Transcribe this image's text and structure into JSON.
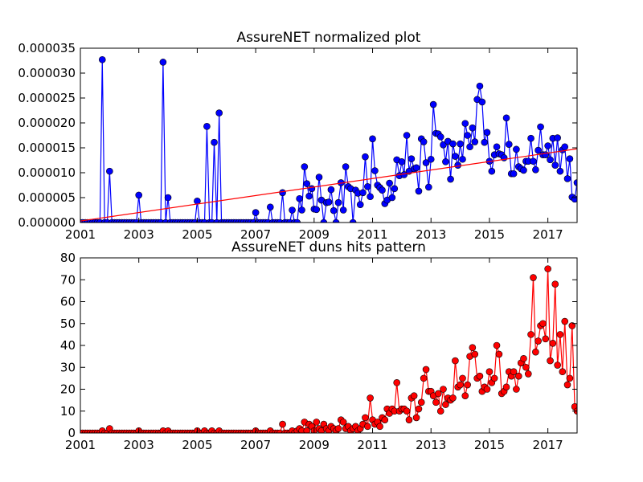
{
  "chart_data": [
    {
      "type": "line",
      "title": "AssureNET normalized plot",
      "x": [
        2001,
        2001.08,
        2001.17,
        2001.25,
        2001.33,
        2001.42,
        2001.5,
        2001.58,
        2001.67,
        2001.75,
        2001.83,
        2001.92,
        2002,
        2002.08,
        2002.17,
        2002.25,
        2002.33,
        2002.42,
        2002.5,
        2002.58,
        2002.67,
        2002.75,
        2002.83,
        2002.92,
        2003,
        2003.08,
        2003.17,
        2003.25,
        2003.33,
        2003.42,
        2003.5,
        2003.58,
        2003.67,
        2003.75,
        2003.83,
        2003.92,
        2004,
        2004.08,
        2004.17,
        2004.25,
        2004.33,
        2004.42,
        2004.5,
        2004.58,
        2004.67,
        2004.75,
        2004.83,
        2004.92,
        2005,
        2005.08,
        2005.17,
        2005.25,
        2005.33,
        2005.42,
        2005.5,
        2005.58,
        2005.67,
        2005.75,
        2005.83,
        2005.92,
        2006,
        2006.08,
        2006.17,
        2006.25,
        2006.33,
        2006.42,
        2006.5,
        2006.58,
        2006.67,
        2006.75,
        2006.83,
        2006.92,
        2007,
        2007.08,
        2007.17,
        2007.25,
        2007.33,
        2007.42,
        2007.5,
        2007.58,
        2007.67,
        2007.75,
        2007.83,
        2007.92,
        2008,
        2008.08,
        2008.17,
        2008.25,
        2008.33,
        2008.42,
        2008.5,
        2008.58,
        2008.67,
        2008.75,
        2008.83,
        2008.92,
        2009,
        2009.08,
        2009.17,
        2009.25,
        2009.33,
        2009.42,
        2009.5,
        2009.58,
        2009.67,
        2009.75,
        2009.83,
        2009.92,
        2010,
        2010.08,
        2010.17,
        2010.25,
        2010.33,
        2010.42,
        2010.5,
        2010.58,
        2010.67,
        2010.75,
        2010.83,
        2010.92,
        2011,
        2011.08,
        2011.17,
        2011.25,
        2011.33,
        2011.42,
        2011.5,
        2011.58,
        2011.67,
        2011.75,
        2011.83,
        2011.92,
        2012,
        2012.08,
        2012.17,
        2012.25,
        2012.33,
        2012.42,
        2012.5,
        2012.58,
        2012.67,
        2012.75,
        2012.83,
        2012.92,
        2013,
        2013.08,
        2013.17,
        2013.25,
        2013.33,
        2013.42,
        2013.5,
        2013.58,
        2013.67,
        2013.75,
        2013.83,
        2013.92,
        2014,
        2014.08,
        2014.17,
        2014.25,
        2014.33,
        2014.42,
        2014.5,
        2014.58,
        2014.67,
        2014.75,
        2014.83,
        2014.92,
        2015,
        2015.08,
        2015.17,
        2015.25,
        2015.33,
        2015.42,
        2015.5,
        2015.58,
        2015.67,
        2015.75,
        2015.83,
        2015.92,
        2016,
        2016.08,
        2016.17,
        2016.25,
        2016.33,
        2016.42,
        2016.5,
        2016.58,
        2016.67,
        2016.75,
        2016.83,
        2016.92,
        2017,
        2017.08,
        2017.17,
        2017.25,
        2017.33,
        2017.42,
        2017.5,
        2017.58,
        2017.67,
        2017.75,
        2017.83,
        2017.92,
        2018
      ],
      "xlim": [
        2001,
        2018
      ],
      "xticks": [
        2001,
        2003,
        2005,
        2007,
        2009,
        2011,
        2013,
        2015,
        2017
      ],
      "ylim": [
        0,
        3.5e-05
      ],
      "yticks": [
        {
          "value": 0,
          "label": "0.000000"
        },
        {
          "value": 5e-06,
          "label": "0.000005"
        },
        {
          "value": 1e-05,
          "label": "0.000010"
        },
        {
          "value": 1.5e-05,
          "label": "0.000015"
        },
        {
          "value": 2e-05,
          "label": "0.000020"
        },
        {
          "value": 2.5e-05,
          "label": "0.000025"
        },
        {
          "value": 3e-05,
          "label": "0.000030"
        },
        {
          "value": 3.5e-05,
          "label": "0.000035"
        }
      ],
      "series": [
        {
          "color": "#0000ff",
          "values": [
            0,
            0,
            0,
            0,
            0,
            0,
            0,
            0,
            0,
            3.27e-05,
            0,
            0,
            1.03e-05,
            0,
            0,
            0,
            0,
            0,
            0,
            0,
            0,
            0,
            0,
            0,
            5.5e-06,
            0,
            0,
            0,
            0,
            0,
            0,
            0,
            0,
            0,
            3.22e-05,
            0,
            5e-06,
            0,
            0,
            0,
            0,
            0,
            0,
            0,
            0,
            0,
            0,
            0,
            4.3e-06,
            0,
            0,
            0,
            1.93e-05,
            0,
            0,
            1.61e-05,
            0,
            2.2e-05,
            0,
            0,
            0,
            0,
            0,
            0,
            0,
            0,
            0,
            0,
            0,
            0,
            0,
            0,
            2e-06,
            0,
            0,
            0,
            0,
            0,
            3.1e-06,
            0,
            0,
            0,
            0,
            6e-06,
            0,
            0,
            0,
            2.5e-06,
            0,
            0,
            4.8e-06,
            2.5e-06,
            1.12e-05,
            7.8e-06,
            5.3e-06,
            6.8e-06,
            2.7e-06,
            2.6e-06,
            9.1e-06,
            4.5e-06,
            0,
            4e-06,
            4.1e-06,
            6.6e-06,
            2.4e-06,
            0,
            4e-06,
            8e-06,
            2.5e-06,
            1.12e-05,
            7.2e-06,
            6.8e-06,
            0,
            6.5e-06,
            5.9e-06,
            3.6e-06,
            6e-06,
            1.32e-05,
            7.2e-06,
            5.2e-06,
            1.68e-05,
            1.04e-05,
            7.5e-06,
            7e-06,
            6.5e-06,
            3.8e-06,
            4.5e-06,
            7.9e-06,
            5e-06,
            6.8e-06,
            1.26e-05,
            9.4e-06,
            1.22e-05,
            9.6e-06,
            1.75e-05,
            1.03e-05,
            1.28e-05,
            1.08e-05,
            1.1e-05,
            6.3e-06,
            1.68e-05,
            1.62e-05,
            1.2e-05,
            7.1e-06,
            1.27e-05,
            2.37e-05,
            1.79e-05,
            1.78e-05,
            1.72e-05,
            1.56e-05,
            1.22e-05,
            1.63e-05,
            8.7e-06,
            1.58e-05,
            1.33e-05,
            1.15e-05,
            1.58e-05,
            1.27e-05,
            1.99e-05,
            1.75e-05,
            1.52e-05,
            1.9e-05,
            1.62e-05,
            2.47e-05,
            2.74e-05,
            2.42e-05,
            1.61e-05,
            1.81e-05,
            1.23e-05,
            1.03e-05,
            1.36e-05,
            1.52e-05,
            1.38e-05,
            1.36e-05,
            1.3e-05,
            2.1e-05,
            1.57e-05,
            9.8e-06,
            9.8e-06,
            1.47e-05,
            1.12e-05,
            1.08e-05,
            1.05e-05,
            1.23e-05,
            1.23e-05,
            1.69e-05,
            1.23e-05,
            1.06e-05,
            1.45e-05,
            1.92e-05,
            1.36e-05,
            1.36e-05,
            1.54e-05,
            1.26e-05,
            1.69e-05,
            1.15e-05,
            1.7e-05,
            1.03e-05,
            1.46e-05,
            1.52e-05,
            8.8e-06,
            1.28e-05,
            5.1e-06,
            4.7e-06,
            8e-06
          ]
        }
      ],
      "trend": {
        "color": "#ff0000",
        "x": [
          2001,
          2018
        ],
        "values": [
          3e-07,
          1.48e-05
        ]
      }
    },
    {
      "type": "line",
      "title": "AssureNET duns hits pattern",
      "x": [
        2001,
        2001.08,
        2001.17,
        2001.25,
        2001.33,
        2001.42,
        2001.5,
        2001.58,
        2001.67,
        2001.75,
        2001.83,
        2001.92,
        2002,
        2002.08,
        2002.17,
        2002.25,
        2002.33,
        2002.42,
        2002.5,
        2002.58,
        2002.67,
        2002.75,
        2002.83,
        2002.92,
        2003,
        2003.08,
        2003.17,
        2003.25,
        2003.33,
        2003.42,
        2003.5,
        2003.58,
        2003.67,
        2003.75,
        2003.83,
        2003.92,
        2004,
        2004.08,
        2004.17,
        2004.25,
        2004.33,
        2004.42,
        2004.5,
        2004.58,
        2004.67,
        2004.75,
        2004.83,
        2004.92,
        2005,
        2005.08,
        2005.17,
        2005.25,
        2005.33,
        2005.42,
        2005.5,
        2005.58,
        2005.67,
        2005.75,
        2005.83,
        2005.92,
        2006,
        2006.08,
        2006.17,
        2006.25,
        2006.33,
        2006.42,
        2006.5,
        2006.58,
        2006.67,
        2006.75,
        2006.83,
        2006.92,
        2007,
        2007.08,
        2007.17,
        2007.25,
        2007.33,
        2007.42,
        2007.5,
        2007.58,
        2007.67,
        2007.75,
        2007.83,
        2007.92,
        2008,
        2008.08,
        2008.17,
        2008.25,
        2008.33,
        2008.42,
        2008.5,
        2008.58,
        2008.67,
        2008.75,
        2008.83,
        2008.92,
        2009,
        2009.08,
        2009.17,
        2009.25,
        2009.33,
        2009.42,
        2009.5,
        2009.58,
        2009.67,
        2009.75,
        2009.83,
        2009.92,
        2010,
        2010.08,
        2010.17,
        2010.25,
        2010.33,
        2010.42,
        2010.5,
        2010.58,
        2010.67,
        2010.75,
        2010.83,
        2010.92,
        2011,
        2011.08,
        2011.17,
        2011.25,
        2011.33,
        2011.42,
        2011.5,
        2011.58,
        2011.67,
        2011.75,
        2011.83,
        2011.92,
        2012,
        2012.08,
        2012.17,
        2012.25,
        2012.33,
        2012.42,
        2012.5,
        2012.58,
        2012.67,
        2012.75,
        2012.83,
        2012.92,
        2013,
        2013.08,
        2013.17,
        2013.25,
        2013.33,
        2013.42,
        2013.5,
        2013.58,
        2013.67,
        2013.75,
        2013.83,
        2013.92,
        2014,
        2014.08,
        2014.17,
        2014.25,
        2014.33,
        2014.42,
        2014.5,
        2014.58,
        2014.67,
        2014.75,
        2014.83,
        2014.92,
        2015,
        2015.08,
        2015.17,
        2015.25,
        2015.33,
        2015.42,
        2015.5,
        2015.58,
        2015.67,
        2015.75,
        2015.83,
        2015.92,
        2016,
        2016.08,
        2016.17,
        2016.25,
        2016.33,
        2016.42,
        2016.5,
        2016.58,
        2016.67,
        2016.75,
        2016.83,
        2016.92,
        2017,
        2017.08,
        2017.17,
        2017.25,
        2017.33,
        2017.42,
        2017.5,
        2017.58,
        2017.67,
        2017.75,
        2017.83,
        2017.92,
        2018
      ],
      "xlim": [
        2001,
        2018
      ],
      "xticks": [
        2001,
        2003,
        2005,
        2007,
        2009,
        2011,
        2013,
        2015,
        2017
      ],
      "ylim": [
        0,
        80
      ],
      "yticks": [
        0,
        10,
        20,
        30,
        40,
        50,
        60,
        70,
        80
      ],
      "series": [
        {
          "color": "#ff0000",
          "values": [
            0,
            0,
            0,
            0,
            0,
            0,
            0,
            0,
            0,
            1,
            0,
            0,
            2,
            0,
            0,
            0,
            0,
            0,
            0,
            0,
            0,
            0,
            0,
            0,
            1,
            0,
            0,
            0,
            0,
            0,
            0,
            0,
            0,
            0,
            1,
            0,
            1,
            0,
            0,
            0,
            0,
            0,
            0,
            0,
            0,
            0,
            0,
            0,
            1,
            0,
            0,
            1,
            0,
            0,
            1,
            0,
            0,
            1,
            0,
            0,
            0,
            0,
            0,
            0,
            0,
            0,
            0,
            0,
            0,
            0,
            0,
            0,
            1,
            0,
            0,
            0,
            0,
            0,
            1,
            0,
            0,
            0,
            0,
            4,
            0,
            0,
            0,
            1,
            0,
            1,
            2,
            1,
            5,
            1,
            4,
            3,
            1,
            5,
            2,
            1,
            4,
            2,
            1,
            3,
            2,
            1,
            2,
            6,
            5,
            2,
            3,
            1,
            2,
            3,
            1,
            2,
            4,
            7,
            3,
            16,
            6,
            4,
            5,
            3,
            7,
            6,
            11,
            9,
            11,
            10,
            23,
            10,
            11,
            11,
            10,
            6,
            16,
            17,
            7,
            11,
            14,
            25,
            29,
            19,
            19,
            17,
            14,
            18,
            10,
            20,
            13,
            16,
            15,
            16,
            33,
            21,
            22,
            25,
            17,
            22,
            35,
            39,
            36,
            25,
            26,
            19,
            21,
            20,
            28,
            23,
            25,
            40,
            36,
            18,
            19,
            21,
            28,
            26,
            28,
            20,
            26,
            32,
            34,
            30,
            27,
            45,
            71,
            37,
            42,
            49,
            50,
            43,
            75,
            33,
            41,
            68,
            31,
            45,
            28,
            51,
            22,
            25,
            49,
            12,
            10
          ]
        }
      ]
    }
  ]
}
